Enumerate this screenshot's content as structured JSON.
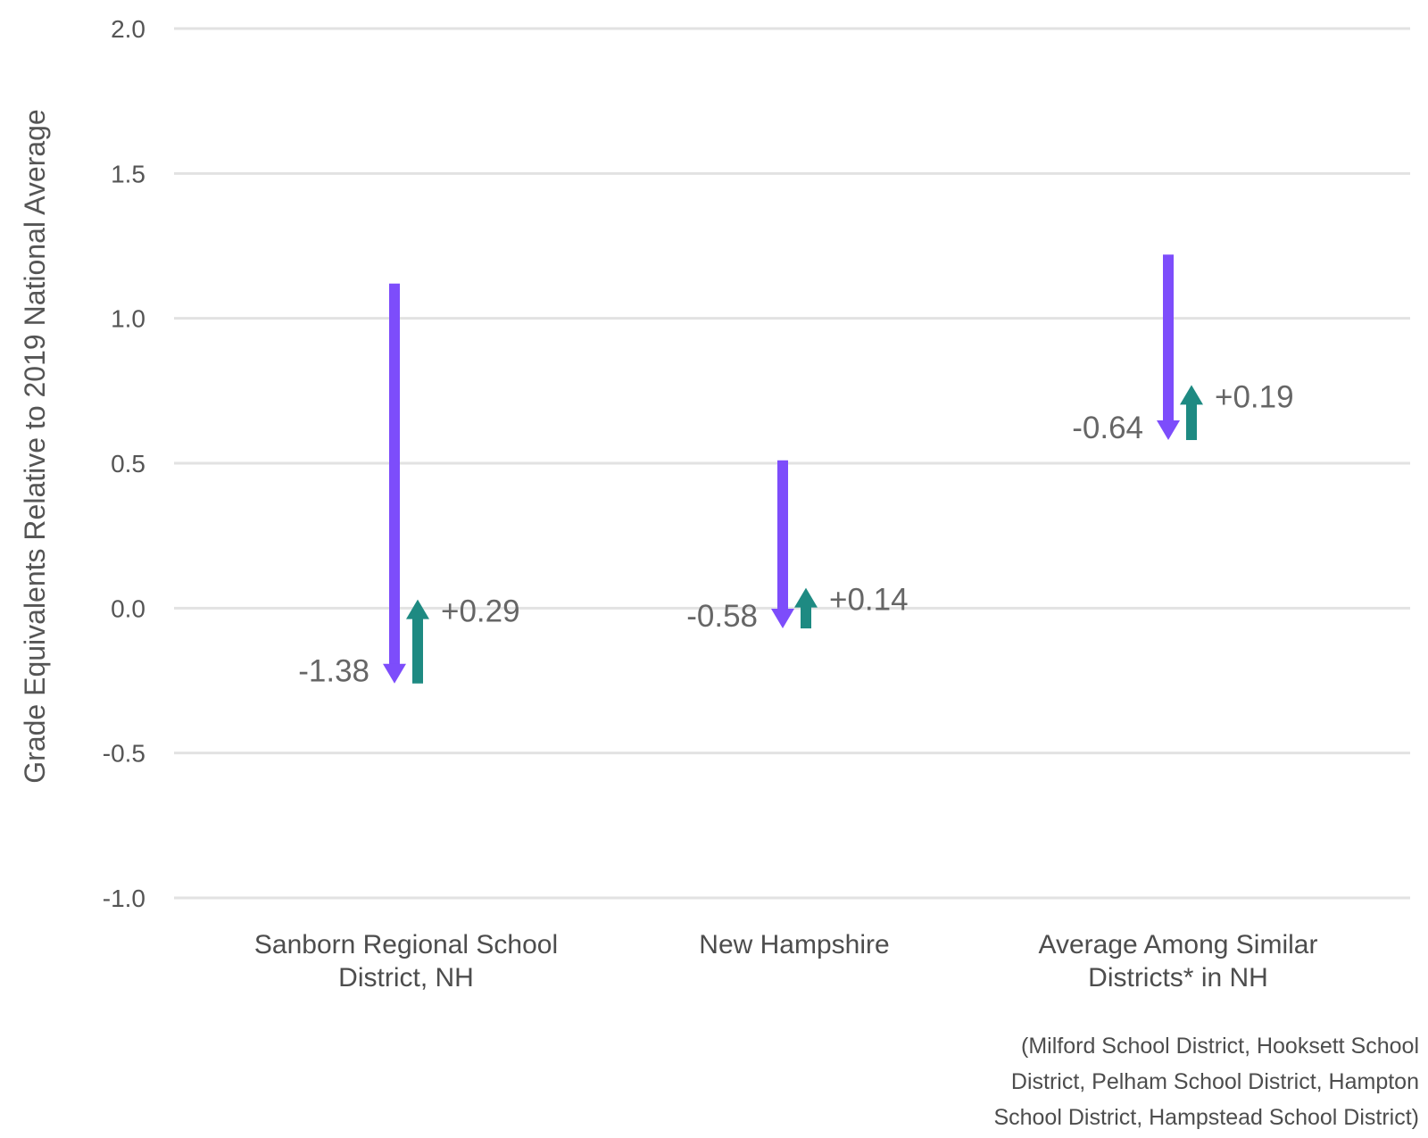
{
  "chart_data": {
    "type": "waterfall-arrows",
    "ylabel": "Grade Equivalents Relative to 2019 National Average",
    "ylim": [
      -1.0,
      2.0
    ],
    "yticks": [
      2.0,
      1.5,
      1.0,
      0.5,
      0.0,
      -0.5,
      -1.0
    ],
    "ytick_labels": [
      "2.0",
      "1.5",
      "1.0",
      "0.5",
      "0.0",
      "-0.5",
      "-1.0"
    ],
    "grid": true,
    "categories": [
      [
        "Sanborn Regional School",
        "District, NH"
      ],
      [
        "New Hampshire"
      ],
      [
        "Average Among Similar",
        "Districts* in NH"
      ]
    ],
    "series": [
      {
        "values": [
          -1.38,
          -0.58,
          -0.64
        ],
        "labels": [
          "-1.38",
          "-0.58",
          "-0.64"
        ],
        "start": [
          1.12,
          0.51,
          1.22
        ]
      },
      {
        "values": [
          0.29,
          0.14,
          0.19
        ],
        "labels": [
          "+0.29",
          "+0.14",
          "+0.19"
        ]
      }
    ],
    "colors": {
      "decline": "#7d4dfb",
      "recovery": "#1e8a82",
      "grid": "#e2e2e2"
    },
    "footnote": [
      "(Milford School District, Hooksett School",
      "District, Pelham School District, Hampton",
      "School District, Hampstead School District)"
    ]
  }
}
